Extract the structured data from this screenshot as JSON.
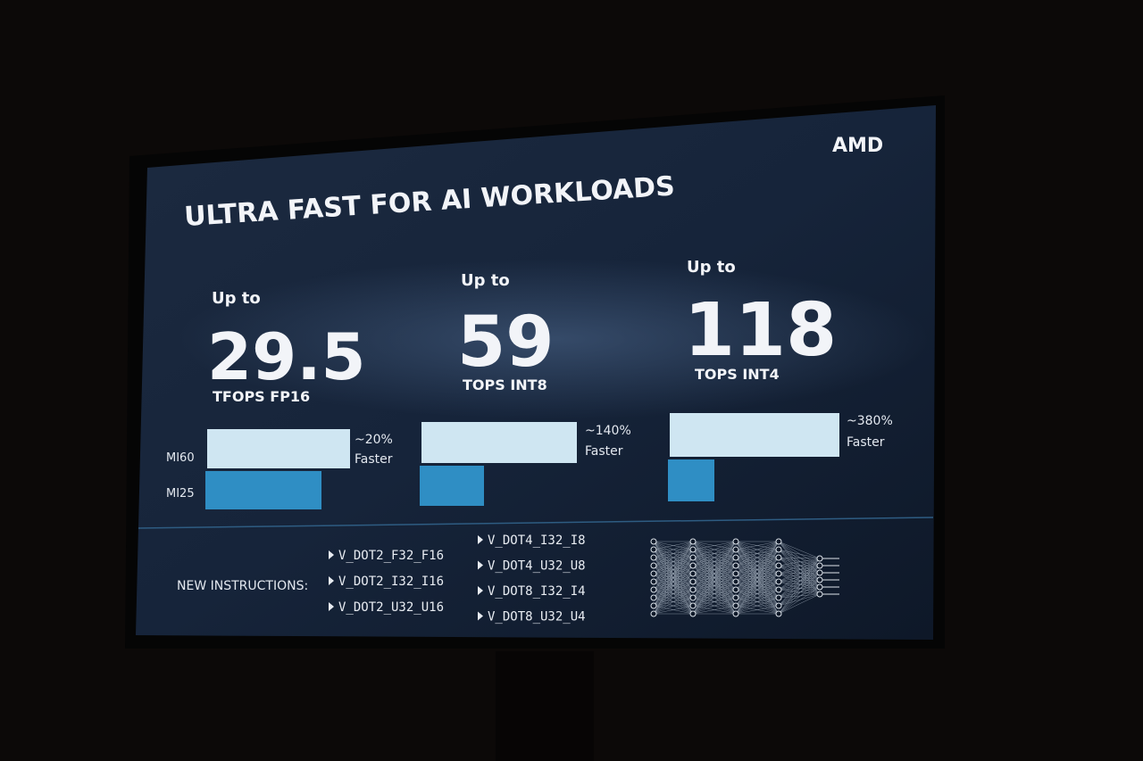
{
  "logo": "AMD",
  "title": "ULTRA FAST FOR AI WORKLOADS",
  "metrics": [
    {
      "prefix": "Up to",
      "value": 29.5,
      "unit": "TFOPS FP16",
      "gain": "~20%",
      "gain_label": "Faster"
    },
    {
      "prefix": "Up to",
      "value": 59,
      "unit": "TOPS INT8",
      "gain": "~140%",
      "gain_label": "Faster"
    },
    {
      "prefix": "Up to",
      "value": 118,
      "unit": "TOPS INT4",
      "gain": "~380%",
      "gain_label": "Faster"
    }
  ],
  "legend": [
    "MI60",
    "MI25"
  ],
  "instructions": {
    "label": "NEW INSTRUCTIONS:",
    "items": [
      "V_DOT2_F32_F16",
      "V_DOT2_I32_I16",
      "V_DOT2_U32_U16",
      "V_DOT4_I32_I8",
      "V_DOT4_U32_U8",
      "V_DOT8_I32_I4",
      "V_DOT8_U32_U4"
    ]
  }
}
